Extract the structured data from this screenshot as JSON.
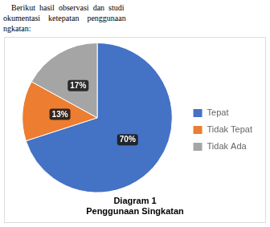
{
  "chart_data": {
    "type": "pie",
    "title": "Diagram 1",
    "subtitle": "Penggunaan Singkatan",
    "annotations": [
      "    Berikut  hasil  observasi  dan  studi",
      "okumentasi    ketepatan    penggunaan",
      "ngkatan:"
    ],
    "categories": [
      "Tepat",
      "Tidak Tepat",
      "Tidak Ada"
    ],
    "values": [
      70,
      13,
      17
    ],
    "value_labels": [
      "70%",
      "13%",
      "17%"
    ],
    "colors": [
      "#4472C4",
      "#ED7D31",
      "#A5A5A5"
    ],
    "data_labels": true,
    "legend": "right"
  }
}
